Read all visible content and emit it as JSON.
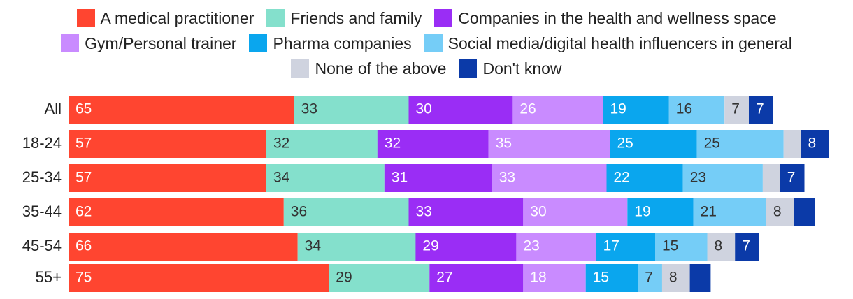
{
  "chart_data": {
    "type": "bar",
    "orientation": "horizontal",
    "stacked": true,
    "categories": [
      "All",
      "18-24",
      "25-34",
      "35-44",
      "45-54",
      "55+"
    ],
    "series": [
      {
        "name": "A medical practitioner",
        "color": "#ff4530",
        "label_color": "#ffffff",
        "values": [
          65,
          57,
          57,
          62,
          66,
          75
        ],
        "labels": [
          "65",
          "57",
          "57",
          "62",
          "66",
          "75"
        ]
      },
      {
        "name": "Friends and family",
        "color": "#84e0cc",
        "label_color": "#333333",
        "values": [
          33,
          32,
          34,
          36,
          34,
          29
        ],
        "labels": [
          "33",
          "32",
          "34",
          "36",
          "34",
          "29"
        ]
      },
      {
        "name": "Companies in the health and wellness space",
        "color": "#9a2df5",
        "label_color": "#ffffff",
        "values": [
          30,
          32,
          31,
          33,
          29,
          27
        ],
        "labels": [
          "30",
          "32",
          "31",
          "33",
          "29",
          "27"
        ]
      },
      {
        "name": "Gym/Personal trainer",
        "color": "#c98bff",
        "label_color": "#ffffff",
        "values": [
          26,
          35,
          33,
          30,
          23,
          18
        ],
        "labels": [
          "26",
          "35",
          "33",
          "30",
          "23",
          "18"
        ]
      },
      {
        "name": "Pharma companies",
        "color": "#0aa6ee",
        "label_color": "#ffffff",
        "values": [
          19,
          25,
          22,
          19,
          17,
          15
        ],
        "labels": [
          "19",
          "25",
          "22",
          "19",
          "17",
          "15"
        ]
      },
      {
        "name": "Social media/digital health influencers in general",
        "color": "#75cdf7",
        "label_color": "#333333",
        "values": [
          16,
          25,
          23,
          21,
          15,
          7
        ],
        "labels": [
          "16",
          "25",
          "23",
          "21",
          "15",
          "7"
        ]
      },
      {
        "name": "None of the above",
        "color": "#cfd3df",
        "label_color": "#333333",
        "values": [
          7,
          5,
          5,
          8,
          8,
          8
        ],
        "labels": [
          "7",
          "",
          "",
          "8",
          "8",
          "8"
        ]
      },
      {
        "name": "Don't know",
        "color": "#0b3aa8",
        "label_color": "#ffffff",
        "values": [
          7,
          8,
          7,
          6,
          7,
          6
        ],
        "labels": [
          "7",
          "8",
          "7",
          "",
          "7",
          ""
        ]
      }
    ],
    "legend_position": "top",
    "legend_rows": [
      [
        0,
        1,
        2
      ],
      [
        3,
        4,
        5
      ],
      [
        6,
        7
      ]
    ],
    "xlim": [
      0,
      225
    ],
    "grid": false,
    "title": "",
    "xlabel": "",
    "ylabel": ""
  }
}
